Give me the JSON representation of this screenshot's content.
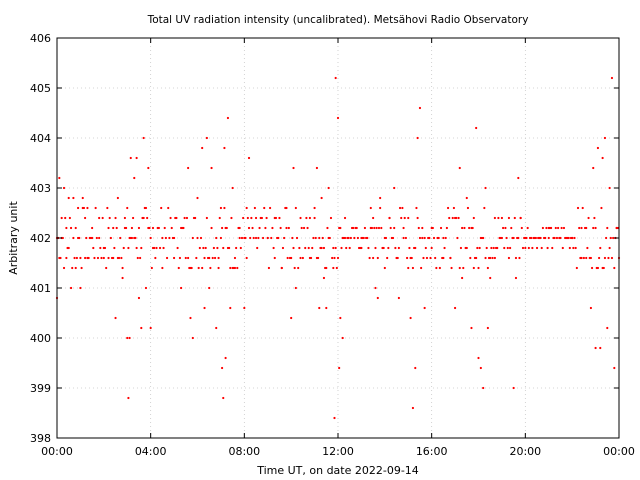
{
  "chart_data": {
    "type": "scatter",
    "title": "Total UV radiation intensity (uncalibrated). Metsähovi Radio Observatory",
    "xlabel": "Time UT, on date 2022-09-14",
    "ylabel": "Arbitrary unit",
    "xlim": [
      0,
      24
    ],
    "ylim": [
      398,
      406
    ],
    "grid": true,
    "x_ticks": [
      {
        "value": 0,
        "label": "00:00"
      },
      {
        "value": 4,
        "label": "04:00"
      },
      {
        "value": 8,
        "label": "08:00"
      },
      {
        "value": 12,
        "label": "12:00"
      },
      {
        "value": 16,
        "label": "16:00"
      },
      {
        "value": 20,
        "label": "20:00"
      },
      {
        "value": 24,
        "label": "00:00"
      }
    ],
    "y_ticks": [
      398,
      399,
      400,
      401,
      402,
      403,
      404,
      405,
      406
    ],
    "series": [
      {
        "color": "#ff0000",
        "marker": "dot",
        "baseline": 402.0,
        "points": [
          [
            0.0,
            400.8
          ],
          [
            0.1,
            403.2
          ],
          [
            0.2,
            402.4
          ],
          [
            0.3,
            403.0
          ],
          [
            0.4,
            401.6
          ],
          [
            0.5,
            402.8
          ],
          [
            0.6,
            401.0
          ],
          [
            0.7,
            402.8
          ],
          [
            0.8,
            401.4
          ],
          [
            0.9,
            402.6
          ],
          [
            1.0,
            401.0
          ],
          [
            1.1,
            402.8
          ],
          [
            1.2,
            402.4
          ],
          [
            1.3,
            401.6
          ],
          [
            1.5,
            402.0
          ],
          [
            1.8,
            402.4
          ],
          [
            2.0,
            401.6
          ],
          [
            2.2,
            402.2
          ],
          [
            2.4,
            401.6
          ],
          [
            2.5,
            400.4
          ],
          [
            2.6,
            402.8
          ],
          [
            2.8,
            401.2
          ],
          [
            2.9,
            402.4
          ],
          [
            3.0,
            400.0
          ],
          [
            3.05,
            398.8
          ],
          [
            3.1,
            400.0
          ],
          [
            3.15,
            403.6
          ],
          [
            3.2,
            402.2
          ],
          [
            3.3,
            403.2
          ],
          [
            3.4,
            403.6
          ],
          [
            3.5,
            400.8
          ],
          [
            3.6,
            400.2
          ],
          [
            3.7,
            404.0
          ],
          [
            3.8,
            401.0
          ],
          [
            3.9,
            403.4
          ],
          [
            4.0,
            400.2
          ],
          [
            4.1,
            402.2
          ],
          [
            4.5,
            402.0
          ],
          [
            5.0,
            402.0
          ],
          [
            5.3,
            401.0
          ],
          [
            5.6,
            403.4
          ],
          [
            5.7,
            400.4
          ],
          [
            5.8,
            400.0
          ],
          [
            6.0,
            402.8
          ],
          [
            6.2,
            403.8
          ],
          [
            6.3,
            400.6
          ],
          [
            6.4,
            404.0
          ],
          [
            6.5,
            401.0
          ],
          [
            6.6,
            403.4
          ],
          [
            6.8,
            400.2
          ],
          [
            6.9,
            401.6
          ],
          [
            7.0,
            402.6
          ],
          [
            7.05,
            399.4
          ],
          [
            7.1,
            398.8
          ],
          [
            7.15,
            403.8
          ],
          [
            7.2,
            399.6
          ],
          [
            7.3,
            404.4
          ],
          [
            7.4,
            400.6
          ],
          [
            7.5,
            403.0
          ],
          [
            7.6,
            401.4
          ],
          [
            7.8,
            402.2
          ],
          [
            8.0,
            400.6
          ],
          [
            8.1,
            402.6
          ],
          [
            8.2,
            403.6
          ],
          [
            8.5,
            402.0
          ],
          [
            9.0,
            402.0
          ],
          [
            9.3,
            401.6
          ],
          [
            9.6,
            401.4
          ],
          [
            9.8,
            402.6
          ],
          [
            10.0,
            400.4
          ],
          [
            10.1,
            403.4
          ],
          [
            10.2,
            401.0
          ],
          [
            10.4,
            402.4
          ],
          [
            10.8,
            401.6
          ],
          [
            11.0,
            402.6
          ],
          [
            11.1,
            403.4
          ],
          [
            11.2,
            400.6
          ],
          [
            11.3,
            402.8
          ],
          [
            11.4,
            401.2
          ],
          [
            11.5,
            400.6
          ],
          [
            11.6,
            403.0
          ],
          [
            11.8,
            401.4
          ],
          [
            11.85,
            398.4
          ],
          [
            11.9,
            405.2
          ],
          [
            12.0,
            404.4
          ],
          [
            12.05,
            399.4
          ],
          [
            12.1,
            400.4
          ],
          [
            12.2,
            400.0
          ],
          [
            12.3,
            402.4
          ],
          [
            13.0,
            402.0
          ],
          [
            13.4,
            402.2
          ],
          [
            13.5,
            401.6
          ],
          [
            13.6,
            401.0
          ],
          [
            13.7,
            400.8
          ],
          [
            13.8,
            402.8
          ],
          [
            14.0,
            401.4
          ],
          [
            14.2,
            402.4
          ],
          [
            14.4,
            403.0
          ],
          [
            14.6,
            400.8
          ],
          [
            14.8,
            402.2
          ],
          [
            15.0,
            401.4
          ],
          [
            15.1,
            400.4
          ],
          [
            15.2,
            398.6
          ],
          [
            15.3,
            399.4
          ],
          [
            15.4,
            404.0
          ],
          [
            15.5,
            404.6
          ],
          [
            15.6,
            402.2
          ],
          [
            15.7,
            400.6
          ],
          [
            16.0,
            401.8
          ],
          [
            16.5,
            402.0
          ],
          [
            16.8,
            401.6
          ],
          [
            17.0,
            400.6
          ],
          [
            17.2,
            403.4
          ],
          [
            17.3,
            401.2
          ],
          [
            17.5,
            402.8
          ],
          [
            17.7,
            400.2
          ],
          [
            17.8,
            402.4
          ],
          [
            17.9,
            404.2
          ],
          [
            18.0,
            399.6
          ],
          [
            18.1,
            399.4
          ],
          [
            18.2,
            399.0
          ],
          [
            18.3,
            403.0
          ],
          [
            18.4,
            400.2
          ],
          [
            18.5,
            401.2
          ],
          [
            18.7,
            402.4
          ],
          [
            19.0,
            402.0
          ],
          [
            19.3,
            401.6
          ],
          [
            19.5,
            399.0
          ],
          [
            19.6,
            401.2
          ],
          [
            19.7,
            403.2
          ],
          [
            19.8,
            402.4
          ],
          [
            20.0,
            402.0
          ],
          [
            21.0,
            402.0
          ],
          [
            22.0,
            402.0
          ],
          [
            22.4,
            402.2
          ],
          [
            22.6,
            401.6
          ],
          [
            22.8,
            400.6
          ],
          [
            22.9,
            403.4
          ],
          [
            23.0,
            399.8
          ],
          [
            23.1,
            403.8
          ],
          [
            23.2,
            399.8
          ],
          [
            23.3,
            403.6
          ],
          [
            23.4,
            404.0
          ],
          [
            23.5,
            400.2
          ],
          [
            23.6,
            403.0
          ],
          [
            23.7,
            405.2
          ],
          [
            23.8,
            399.4
          ],
          [
            23.9,
            402.2
          ],
          [
            24.0,
            401.6
          ]
        ]
      }
    ]
  }
}
